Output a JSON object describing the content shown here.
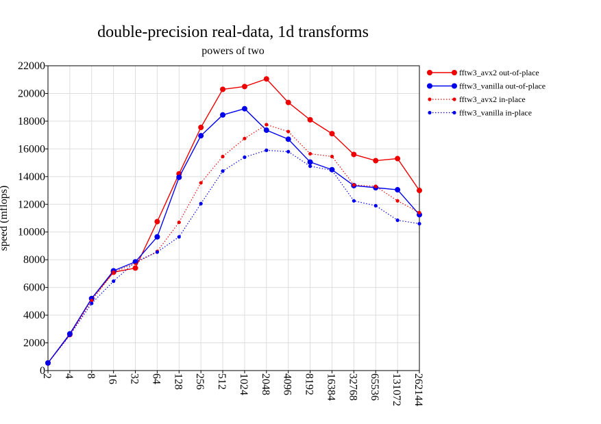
{
  "chart_data": {
    "type": "line",
    "title": "double-precision real-data, 1d transforms",
    "subtitle": "powers of two",
    "xlabel": "",
    "ylabel": "speed (mflops)",
    "ylim": [
      0,
      22000
    ],
    "yticks": [
      "0",
      "2000",
      "4000",
      "6000",
      "8000",
      "10000",
      "12000",
      "14000",
      "16000",
      "18000",
      "20000",
      "22000"
    ],
    "categories": [
      "2",
      "4",
      "8",
      "16",
      "32",
      "64",
      "128",
      "256",
      "512",
      "1024",
      "2048",
      "4096",
      "8192",
      "16384",
      "32768",
      "65536",
      "131072",
      "262144"
    ],
    "grid": true,
    "legend_position": "right",
    "series": [
      {
        "name": "fftw3_avx2 out-of-place",
        "color": "#ee0000",
        "style": "solid",
        "marker": "large",
        "values": [
          550,
          2600,
          5200,
          7100,
          7400,
          10750,
          14200,
          17550,
          20300,
          20500,
          21050,
          19350,
          18100,
          17100,
          15600,
          15150,
          15300,
          13000
        ]
      },
      {
        "name": "fftw3_vanilla out-of-place",
        "color": "#0000ee",
        "style": "solid",
        "marker": "large",
        "values": [
          550,
          2650,
          5200,
          7200,
          7850,
          9650,
          13950,
          16950,
          18450,
          18900,
          17350,
          16700,
          15050,
          14500,
          13350,
          13200,
          13050,
          11250
        ]
      },
      {
        "name": "fftw3_avx2 in-place",
        "color": "#ee0000",
        "style": "dotted",
        "marker": "small",
        "values": [
          550,
          2550,
          5050,
          7100,
          7750,
          8600,
          10700,
          13550,
          15450,
          16750,
          17750,
          17250,
          15650,
          15450,
          13400,
          13300,
          12250,
          11400
        ]
      },
      {
        "name": "fftw3_vanilla in-place",
        "color": "#0000ee",
        "style": "dotted",
        "marker": "small",
        "values": [
          550,
          2550,
          4850,
          6450,
          7850,
          8550,
          9650,
          12050,
          14400,
          15400,
          15900,
          15800,
          14750,
          14450,
          12250,
          11900,
          10850,
          10600
        ]
      }
    ]
  }
}
